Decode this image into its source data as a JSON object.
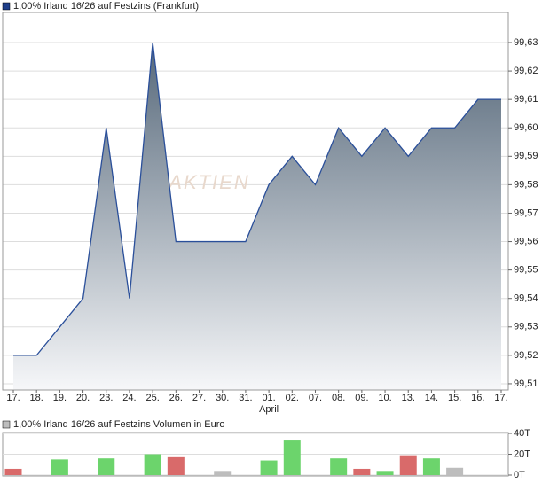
{
  "chart_data": [
    {
      "type": "area",
      "title": "1,00% Irland 16/26 auf Festzins (Frankfurt)",
      "watermark": "AKTIEN",
      "categories": [
        "17.",
        "18.",
        "19.",
        "20.",
        "23.",
        "24.",
        "25.",
        "26.",
        "27.",
        "30.",
        "31.",
        "01.",
        "02.",
        "07.",
        "08.",
        "09.",
        "10.",
        "13.",
        "14.",
        "15.",
        "16.",
        "17."
      ],
      "month_labels": [
        {
          "index": 11,
          "label": "April"
        }
      ],
      "series": [
        {
          "name": "1,00% Irland 16/26 auf Festzins (Frankfurt)",
          "color": "#2a4f9a",
          "values": [
            99.52,
            99.52,
            99.53,
            99.54,
            99.6,
            99.54,
            99.63,
            99.56,
            99.56,
            99.56,
            99.56,
            99.58,
            99.59,
            99.58,
            99.6,
            99.59,
            99.6,
            99.59,
            99.6,
            99.6,
            99.61,
            99.61
          ]
        }
      ],
      "ylim": [
        99.5078,
        99.6406
      ],
      "yticks": [
        {
          "value": 99.51,
          "label": "99,51"
        },
        {
          "value": 99.52,
          "label": "99,52"
        },
        {
          "value": 99.53,
          "label": "99,53"
        },
        {
          "value": 99.54,
          "label": "99,54"
        },
        {
          "value": 99.55,
          "label": "99,55"
        },
        {
          "value": 99.56,
          "label": "99,56"
        },
        {
          "value": 99.57,
          "label": "99,57"
        },
        {
          "value": 99.58,
          "label": "99,58"
        },
        {
          "value": 99.59,
          "label": "99,59"
        },
        {
          "value": 99.6,
          "label": "99,60"
        },
        {
          "value": 99.61,
          "label": "99,61"
        },
        {
          "value": 99.62,
          "label": "99,62"
        },
        {
          "value": 99.63,
          "label": "99,63"
        }
      ],
      "grid": true
    },
    {
      "type": "bar",
      "title": "1,00% Irland 16/26 auf Festzins Volumen in Euro",
      "values": [
        6000,
        null,
        15000,
        null,
        16000,
        null,
        20000,
        18000,
        null,
        4000,
        null,
        14000,
        34000,
        null,
        16000,
        6000,
        4000,
        19000,
        16000,
        7000,
        null,
        null
      ],
      "colors": [
        "#d96a6a",
        null,
        "#6cd46c",
        null,
        "#6cd46c",
        null,
        "#6cd46c",
        "#d96a6a",
        null,
        "#bdbdbd",
        null,
        "#6cd46c",
        "#6cd46c",
        null,
        "#6cd46c",
        "#d96a6a",
        "#6cd46c",
        "#d96a6a",
        "#6cd46c",
        "#bdbdbd",
        null,
        null
      ],
      "ylim": [
        0,
        40000
      ],
      "yticks": [
        {
          "value": 0,
          "label": "0T"
        },
        {
          "value": 20000,
          "label": "20T"
        },
        {
          "value": 40000,
          "label": "40T"
        }
      ],
      "grid": true
    }
  ]
}
